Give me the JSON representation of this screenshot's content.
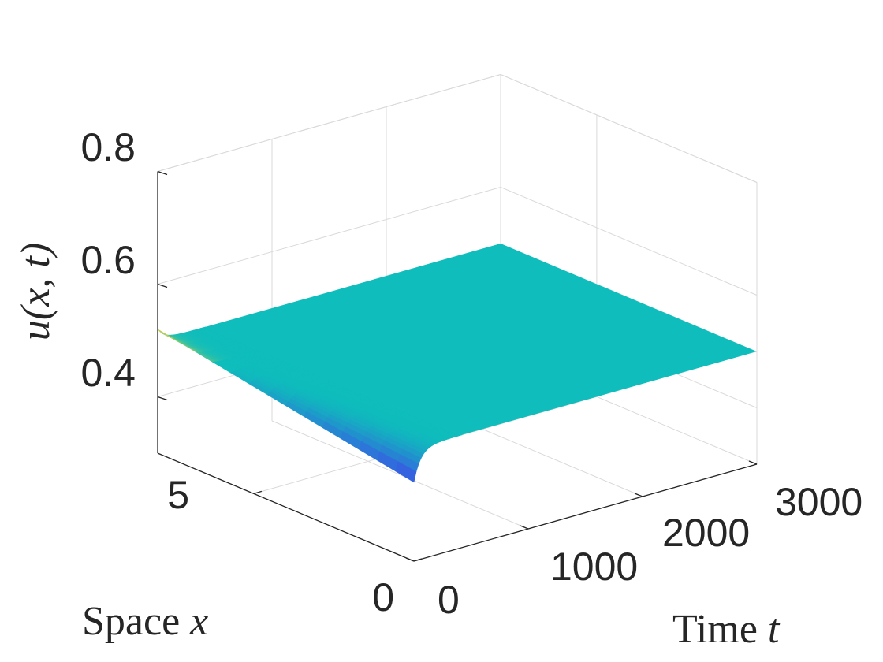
{
  "chart_data": {
    "type": "surface",
    "title": "",
    "xlabel": {
      "text": "Space ",
      "var": "x"
    },
    "ylabel": {
      "text": "Time ",
      "var": "t"
    },
    "zlabel": {
      "text": "u(x, t)"
    },
    "x_ticks": [
      "0",
      "5"
    ],
    "y_ticks": [
      "0",
      "1000",
      "2000",
      "3000"
    ],
    "z_ticks": [
      "0.4",
      "0.6",
      "0.8"
    ],
    "xlim": [
      0,
      8
    ],
    "ylim": [
      0,
      3000
    ],
    "zlim": [
      0.3,
      0.8
    ],
    "grid": true,
    "colormap": "parula",
    "steady_value": 0.5,
    "initial_profile": {
      "t": 0,
      "x": [
        0,
        8
      ],
      "u": [
        0.44,
        0.52
      ],
      "relaxation_time": 60
    },
    "colors": {
      "steady": "#0EBDBC",
      "low": "#3F4DE8",
      "high": "#F9D82D"
    }
  }
}
